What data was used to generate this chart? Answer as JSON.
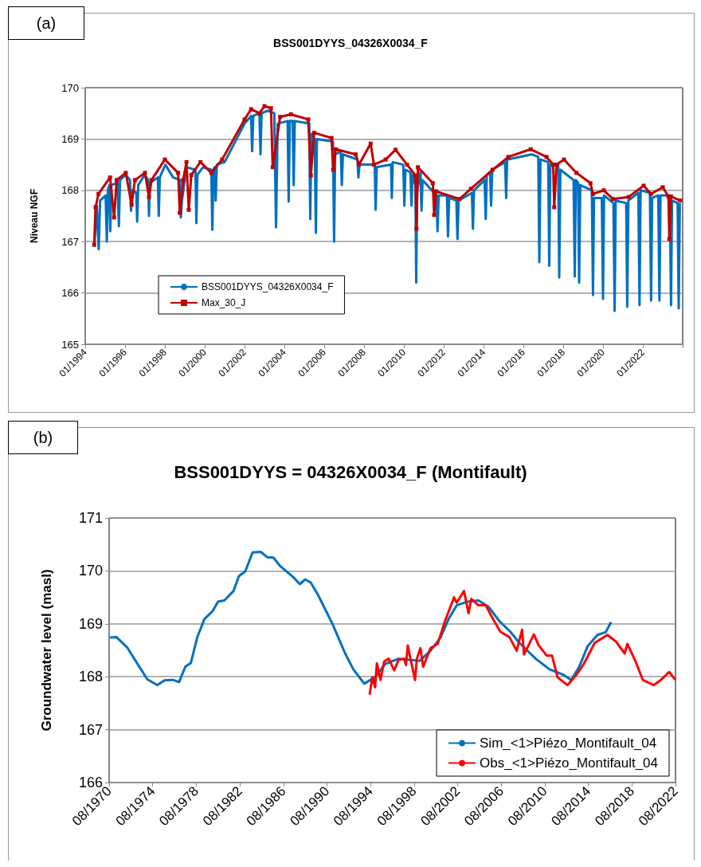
{
  "chart_data": [
    {
      "type": "line",
      "title": "BSS001DYYS_04326X0034_F",
      "ylabel": "Niveau NGF",
      "annotations": [
        "(a)"
      ],
      "xlim": [
        "1994-01",
        "2024-01"
      ],
      "ylim": [
        165,
        170
      ],
      "yticks": [
        165,
        166,
        167,
        168,
        169,
        170
      ],
      "xticks": [
        {
          "value": "1994-01",
          "label": "01/1994"
        },
        {
          "value": "1996-01",
          "label": "01/1996"
        },
        {
          "value": "1998-01",
          "label": "01/1998"
        },
        {
          "value": "2000-01",
          "label": "01/2000"
        },
        {
          "value": "2002-01",
          "label": "01/2002"
        },
        {
          "value": "2004-01",
          "label": "01/2004"
        },
        {
          "value": "2006-01",
          "label": "01/2006"
        },
        {
          "value": "2008-01",
          "label": "01/2008"
        },
        {
          "value": "2010-01",
          "label": "01/2010"
        },
        {
          "value": "2012-01",
          "label": "01/2012"
        },
        {
          "value": "2014-01",
          "label": "01/2014"
        },
        {
          "value": "2016-01",
          "label": "01/2016"
        },
        {
          "value": "2018-01",
          "label": "01/2018"
        },
        {
          "value": "2020-01",
          "label": "01/2020"
        },
        {
          "value": "2022-01",
          "label": "01/2022"
        },
        {
          "value": "2024-01",
          "label": null
        }
      ],
      "grid": "y",
      "legend": "bottom left",
      "series": [
        {
          "name": "BSS001DYYS_04326X0034_F",
          "color": "#0070c0",
          "marker": "none",
          "x": [
            "1994-06-15",
            "1994-08-01",
            "1994-09-05",
            "1994-10-01",
            "1995-01-10",
            "1995-02-01",
            "1995-02-20",
            "1995-03-20",
            "1995-04-05",
            "1995-04-25",
            "1995-08-15",
            "1995-09-10",
            "1995-10-01",
            "1996-01-15",
            "1996-04-01",
            "1996-04-20",
            "1996-05-10",
            "1996-07-25",
            "1996-08-10",
            "1996-08-30",
            "1996-12-25",
            "1997-03-01",
            "1997-03-15",
            "1997-04-01",
            "1997-08-25",
            "1997-09-10",
            "1997-09-30",
            "1998-01-10",
            "1998-06-01",
            "1998-10-05",
            "1998-10-20",
            "1998-11-10",
            "1999-02-01",
            "1999-07-15",
            "1999-08-01",
            "1999-08-20",
            "1999-12-01",
            "2000-05-01",
            "2000-05-20",
            "2000-06-10",
            "2000-07-01",
            "2000-07-20",
            "2000-08-10",
            "2001-01-01",
            "2002-01-01",
            "2002-05-01",
            "2002-05-20",
            "2002-06-10",
            "2002-10-01",
            "2002-10-20",
            "2002-11-10",
            "2003-03-01",
            "2003-07-01",
            "2003-08-01",
            "2003-09-01",
            "2004-03-01",
            "2004-03-20",
            "2004-04-10",
            "2004-06-01",
            "2004-06-20",
            "2004-07-10",
            "2005-04-01",
            "2005-04-20",
            "2005-05-10",
            "2005-07-10",
            "2005-08-01",
            "2005-08-20",
            "2006-06-10",
            "2006-07-01",
            "2006-07-20",
            "2006-11-01",
            "2006-11-20",
            "2006-12-10",
            "2007-09-01",
            "2007-09-20",
            "2007-10-10",
            "2008-07-15",
            "2008-08-01",
            "2008-08-20",
            "2009-05-10",
            "2009-05-25",
            "2009-06-10",
            "2009-12-20",
            "2010-01-10",
            "2010-01-30",
            "2010-05-01",
            "2010-05-20",
            "2010-06-10",
            "2010-08-01",
            "2010-08-15",
            "2010-09-01",
            "2010-11-01",
            "2010-11-20",
            "2010-12-10",
            "2011-08-20",
            "2011-09-10",
            "2011-10-01",
            "2012-03-01",
            "2012-03-20",
            "2012-04-10",
            "2012-08-20",
            "2012-09-10",
            "2012-10-01",
            "2013-06-01",
            "2013-06-20",
            "2013-07-10",
            "2014-01-20",
            "2014-02-10",
            "2014-03-01",
            "2014-05-01",
            "2014-05-20",
            "2014-06-10",
            "2015-02-01",
            "2015-02-20",
            "2015-03-10",
            "2016-06-01",
            "2016-10-01",
            "2016-10-20",
            "2016-11-10",
            "2017-04-01",
            "2017-04-20",
            "2017-05-10",
            "2017-10-01",
            "2017-10-20",
            "2017-11-10",
            "2018-07-10",
            "2018-08-01",
            "2018-08-20",
            "2018-10-01",
            "2018-10-20",
            "2018-11-10",
            "2019-06-10",
            "2019-07-01",
            "2019-07-20",
            "2019-12-10",
            "2020-01-01",
            "2020-01-20",
            "2020-07-10",
            "2020-08-01",
            "2020-08-20",
            "2021-03-01",
            "2021-03-20",
            "2021-04-10",
            "2021-10-10",
            "2021-11-01",
            "2021-11-20",
            "2022-05-10",
            "2022-06-01",
            "2022-06-20",
            "2022-10-10",
            "2022-11-01",
            "2022-11-20",
            "2023-05-10",
            "2023-06-01",
            "2023-06-20",
            "2023-10-01",
            "2023-10-20",
            "2023-11-10"
          ],
          "values": [
            166.9,
            167.7,
            166.85,
            167.8,
            167.9,
            167.0,
            168.0,
            168.1,
            167.2,
            168.1,
            168.15,
            167.3,
            168.2,
            168.3,
            168.2,
            167.6,
            168.0,
            167.95,
            167.39,
            168.1,
            168.3,
            168.2,
            167.5,
            168.15,
            168.25,
            167.5,
            168.25,
            168.5,
            168.25,
            168.2,
            167.47,
            167.8,
            168.45,
            168.4,
            167.36,
            168.3,
            168.45,
            168.4,
            167.23,
            168.4,
            168.45,
            167.8,
            168.5,
            168.55,
            169.3,
            169.45,
            168.76,
            169.45,
            169.5,
            168.7,
            169.5,
            169.55,
            169.5,
            167.28,
            169.3,
            169.35,
            167.78,
            169.35,
            169.35,
            168.1,
            169.35,
            169.3,
            167.44,
            169.1,
            169.0,
            167.17,
            169.0,
            168.95,
            167.0,
            168.7,
            168.75,
            168.1,
            168.7,
            168.6,
            168.25,
            168.5,
            168.5,
            167.62,
            168.45,
            168.5,
            167.85,
            168.55,
            168.5,
            167.7,
            168.4,
            168.35,
            167.7,
            168.3,
            168.1,
            166.2,
            168.0,
            168.35,
            167.6,
            168.2,
            167.9,
            167.2,
            167.9,
            167.9,
            167.1,
            167.85,
            167.8,
            167.05,
            167.8,
            167.95,
            167.25,
            168.0,
            168.2,
            167.44,
            168.3,
            168.35,
            167.7,
            168.4,
            168.55,
            167.85,
            168.6,
            168.7,
            168.65,
            166.6,
            168.6,
            168.55,
            166.53,
            168.5,
            168.5,
            166.3,
            168.4,
            168.2,
            166.32,
            168.2,
            168.15,
            166.2,
            168.1,
            168.0,
            165.96,
            167.85,
            167.85,
            165.88,
            167.9,
            167.75,
            165.65,
            167.8,
            167.75,
            165.73,
            167.8,
            167.95,
            165.76,
            168.0,
            167.95,
            165.85,
            167.85,
            167.9,
            165.85,
            167.9,
            167.9,
            165.76,
            167.8,
            167.75,
            165.7,
            167.75
          ]
        },
        {
          "name": "Max_30_J",
          "color": "#c00000",
          "marker": "square",
          "x": [
            "1994-06-15",
            "1994-07-10",
            "1994-09-01",
            "1995-04-01",
            "1995-06-15",
            "1995-08-01",
            "1996-01-15",
            "1996-05-01",
            "1996-07-01",
            "1997-01-01",
            "1997-03-15",
            "1997-05-01",
            "1998-01-01",
            "1998-09-01",
            "1998-10-01",
            "1998-12-01",
            "1999-02-01",
            "1999-03-15",
            "1999-05-01",
            "1999-10-15",
            "2000-05-01",
            "2000-11-15",
            "2002-01-01",
            "2002-05-01",
            "2002-10-01",
            "2003-01-01",
            "2003-05-01",
            "2003-06-01",
            "2003-10-15",
            "2004-05-01",
            "2005-03-15",
            "2005-05-01",
            "2005-07-01",
            "2006-05-15",
            "2006-06-15",
            "2006-08-01",
            "2007-08-01",
            "2007-10-01",
            "2008-05-01",
            "2008-07-01",
            "2009-02-01",
            "2009-08-01",
            "2010-03-01",
            "2010-08-01",
            "2010-08-20",
            "2010-09-15",
            "2011-06-15",
            "2011-07-10",
            "2011-08-15",
            "2012-10-15",
            "2013-05-15",
            "2014-06-15",
            "2015-04-01",
            "2016-05-15",
            "2017-03-01",
            "2017-07-01",
            "2017-07-20",
            "2017-09-01",
            "2018-01-15",
            "2018-09-01",
            "2019-05-15",
            "2019-07-01",
            "2020-01-15",
            "2020-07-01",
            "2021-04-15",
            "2022-01-15",
            "2022-06-01",
            "2023-01-01",
            "2023-04-15",
            "2023-05-01",
            "2023-06-01",
            "2023-11-15"
          ],
          "values": [
            166.94,
            167.67,
            167.93,
            168.25,
            167.47,
            168.2,
            168.34,
            167.72,
            168.2,
            168.34,
            167.87,
            168.2,
            168.6,
            168.34,
            167.56,
            168.2,
            168.55,
            167.62,
            168.3,
            168.55,
            168.34,
            168.6,
            169.38,
            169.58,
            169.5,
            169.64,
            169.6,
            168.45,
            169.43,
            169.48,
            169.38,
            168.29,
            169.12,
            169.02,
            168.4,
            168.8,
            168.7,
            168.5,
            168.91,
            168.5,
            168.6,
            168.79,
            168.5,
            168.29,
            167.25,
            168.45,
            168.14,
            167.52,
            167.98,
            167.83,
            168.03,
            168.4,
            168.65,
            168.8,
            168.65,
            168.5,
            167.67,
            168.5,
            168.6,
            168.34,
            168.14,
            167.93,
            168.0,
            167.83,
            167.87,
            168.09,
            167.93,
            168.06,
            167.88,
            167.05,
            167.88,
            167.8
          ]
        }
      ]
    },
    {
      "type": "line",
      "title": "BSS001DYYS = 04326X0034_F (Montifault)",
      "ylabel": "Groundwater level (masl)",
      "annotations": [
        "(b)"
      ],
      "xlim": [
        "1970-08",
        "2022-08"
      ],
      "ylim": [
        166,
        171
      ],
      "yticks": [
        166,
        167,
        168,
        169,
        170,
        171
      ],
      "xticks": [
        {
          "value": "1970-08",
          "label": "08/1970"
        },
        {
          "value": "1974-08",
          "label": "08/1974"
        },
        {
          "value": "1978-08",
          "label": "08/1978"
        },
        {
          "value": "1982-08",
          "label": "08/1982"
        },
        {
          "value": "1986-08",
          "label": "08/1986"
        },
        {
          "value": "1990-08",
          "label": "08/1990"
        },
        {
          "value": "1994-08",
          "label": "08/1994"
        },
        {
          "value": "1998-08",
          "label": "08/1998"
        },
        {
          "value": "2002-08",
          "label": "08/2002"
        },
        {
          "value": "2006-08",
          "label": "08/2006"
        },
        {
          "value": "2010-08",
          "label": "08/2010"
        },
        {
          "value": "2014-08",
          "label": "08/2014"
        },
        {
          "value": "2018-08",
          "label": "08/2018"
        },
        {
          "value": "2022-08",
          "label": "08/2022"
        }
      ],
      "grid": "y",
      "legend": "bottom right",
      "series": [
        {
          "name": "Sim_<1>Piézo_Montifault_04",
          "color": "#0070c0",
          "marker": "none",
          "x": [
            "1970-09",
            "1971-04",
            "1972-04",
            "1973-03",
            "1974-02",
            "1975-01",
            "1975-09",
            "1976-06",
            "1977-01",
            "1977-08",
            "1978-02",
            "1978-09",
            "1979-05",
            "1980-02",
            "1980-08",
            "1981-03",
            "1982-01",
            "1982-07",
            "1983-02",
            "1983-10",
            "1984-07",
            "1985-02",
            "1985-09",
            "1986-04",
            "1986-12",
            "1987-07",
            "1988-02",
            "1988-08",
            "1989-02",
            "1989-10",
            "1991-02",
            "1992-04",
            "1993-01",
            "1994-01",
            "1995-01",
            "1995-12",
            "1997-03",
            "1999-02",
            "2000-02",
            "2001-01",
            "2001-10",
            "2002-07",
            "2003-07",
            "2004-07",
            "2005-06",
            "2006-06",
            "2007-06",
            "2008-04",
            "2009-10",
            "2011-01",
            "2012-04",
            "2013-01",
            "2013-10",
            "2014-07",
            "2015-06",
            "2016-03",
            "2016-09"
          ],
          "values": [
            168.74,
            168.75,
            168.55,
            168.25,
            167.95,
            167.84,
            167.93,
            167.94,
            167.9,
            168.19,
            168.26,
            168.74,
            169.09,
            169.24,
            169.42,
            169.44,
            169.62,
            169.9,
            169.99,
            170.35,
            170.36,
            170.26,
            170.25,
            170.1,
            169.98,
            169.88,
            169.75,
            169.84,
            169.78,
            169.55,
            169.0,
            168.44,
            168.14,
            167.87,
            167.99,
            168.24,
            168.34,
            168.3,
            168.49,
            168.74,
            169.09,
            169.35,
            169.42,
            169.44,
            169.32,
            169.05,
            168.85,
            168.64,
            168.34,
            168.14,
            168.04,
            167.94,
            168.19,
            168.57,
            168.79,
            168.84,
            169.03
          ]
        },
        {
          "name": "Obs_<1>Piézo_Montifault_04",
          "color": "#ff0000",
          "marker": "none",
          "x": [
            "1994-07",
            "1994-10",
            "1995-01",
            "1995-03",
            "1995-07",
            "1995-11",
            "1996-04",
            "1996-10",
            "1997-03",
            "1997-09",
            "1997-11",
            "1998-01",
            "1998-04",
            "1998-09",
            "1998-11",
            "1999-03",
            "1999-06",
            "2000-02",
            "2000-10",
            "2001-06",
            "2002-04",
            "2002-07",
            "2003-03",
            "2003-08",
            "2003-11",
            "2004-07",
            "2005-03",
            "2005-09",
            "2006-07",
            "2007-05",
            "2008-01",
            "2008-07",
            "2008-09",
            "2009-08",
            "2010-01",
            "2010-10",
            "2011-04",
            "2011-10",
            "2012-09",
            "2013-07",
            "2014-03",
            "2015-03",
            "2016-05",
            "2017-02",
            "2017-12",
            "2018-03",
            "2018-12",
            "2019-08",
            "2020-08",
            "2021-04",
            "2022-01",
            "2022-08"
          ],
          "values": [
            167.66,
            167.99,
            167.8,
            168.25,
            167.94,
            168.29,
            168.34,
            168.12,
            168.32,
            168.34,
            168.22,
            168.59,
            168.34,
            167.94,
            168.34,
            168.54,
            168.19,
            168.54,
            168.62,
            169.05,
            169.5,
            169.4,
            169.62,
            169.2,
            169.47,
            169.35,
            169.35,
            169.15,
            168.85,
            168.75,
            168.49,
            168.89,
            168.42,
            168.8,
            168.6,
            168.4,
            168.4,
            167.99,
            167.84,
            168.04,
            168.24,
            168.64,
            168.79,
            168.67,
            168.44,
            168.62,
            168.29,
            167.94,
            167.84,
            167.94,
            168.09,
            167.94
          ]
        }
      ]
    }
  ]
}
